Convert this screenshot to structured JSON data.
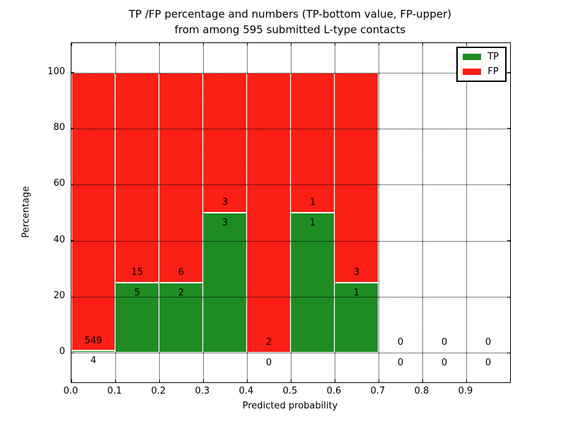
{
  "title": {
    "line1": "TP /FP percentage and numbers (TP-bottom value, FP-upper)",
    "line2": "from among 595 submitted L-type contacts"
  },
  "legend": {
    "items": [
      {
        "label": "TP",
        "color": "#1e8c23"
      },
      {
        "label": "FP",
        "color": "#fb1f15"
      }
    ]
  },
  "chart_data": {
    "type": "bar",
    "stacked": true,
    "normalized": "percent of bin total",
    "title": "TP /FP percentage and numbers (TP-bottom value, FP-upper) from among 595 submitted L-type contacts",
    "xlabel": "Predicted probability",
    "ylabel": "Percentage",
    "xlim": [
      0.0,
      1.0
    ],
    "ylim": [
      -10.5,
      110.5
    ],
    "xticks": [
      "0.0",
      "0.1",
      "0.2",
      "0.3",
      "0.4",
      "0.5",
      "0.6",
      "0.7",
      "0.8",
      "0.9"
    ],
    "yticks": [
      0,
      20,
      40,
      60,
      80,
      100
    ],
    "grid": "dotted black, both axes, drawn above bars",
    "legend_position": "upper right",
    "bin_edges": [
      0.0,
      0.1,
      0.2,
      0.3,
      0.4,
      0.5,
      0.6,
      0.7,
      0.8,
      0.9,
      1.0
    ],
    "categories": [
      "0.0-0.1",
      "0.1-0.2",
      "0.2-0.3",
      "0.3-0.4",
      "0.4-0.5",
      "0.5-0.6",
      "0.6-0.7",
      "0.7-0.8",
      "0.8-0.9",
      "0.9-1.0"
    ],
    "series": [
      {
        "name": "TP",
        "color": "#1e8c23",
        "counts": [
          4,
          5,
          2,
          3,
          0,
          1,
          1,
          0,
          0,
          0
        ],
        "percent": [
          0.72,
          25,
          25,
          50,
          0,
          50,
          25,
          0,
          0,
          0
        ]
      },
      {
        "name": "FP",
        "color": "#fb1f15",
        "counts": [
          549,
          15,
          6,
          3,
          2,
          1,
          3,
          0,
          0,
          0
        ],
        "percent": [
          99.28,
          75,
          75,
          50,
          100,
          50,
          75,
          0,
          0,
          0
        ]
      }
    ],
    "total_contacts": 595,
    "bar_edge_color": "#ffffff"
  }
}
